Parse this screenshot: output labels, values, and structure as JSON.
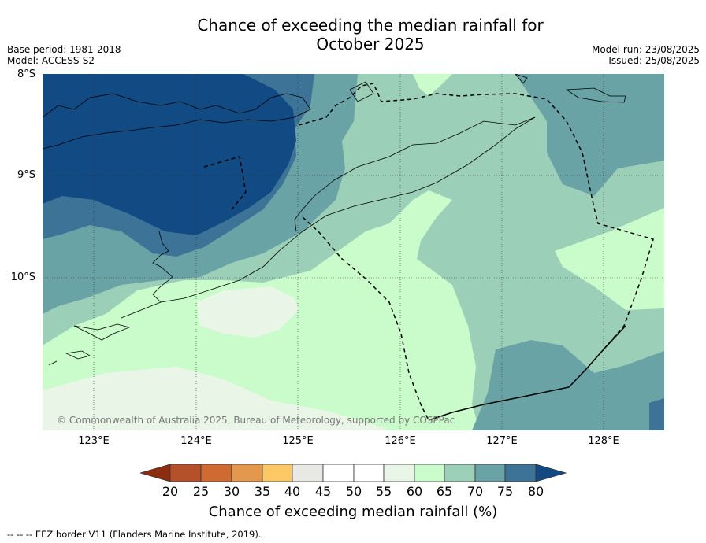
{
  "title": {
    "line1": "Chance of exceeding the median rainfall for",
    "line2": "October 2025"
  },
  "meta": {
    "base_period": "Base period: 1981-2018",
    "model": "Model: ACCESS-S2",
    "model_run": "Model run: 23/08/2025",
    "issued": "Issued: 25/08/2025"
  },
  "axes": {
    "lat_labels": [
      "8°S",
      "9°S",
      "10°S"
    ],
    "lon_labels": [
      "123°E",
      "124°E",
      "125°E",
      "126°E",
      "127°E",
      "128°E"
    ]
  },
  "copyright": "© Commonwealth of Australia 2025, Bureau of Meteorology, supported by COSPPac",
  "colorbar": {
    "label": "Chance of exceeding median rainfall (%)",
    "ticks": [
      "20",
      "25",
      "30",
      "35",
      "40",
      "45",
      "50",
      "55",
      "60",
      "65",
      "70",
      "75",
      "80"
    ],
    "colors": {
      "below_20": "#8c2d10",
      "20-25": "#b5502a",
      "25-30": "#d06a33",
      "30-35": "#e4984e",
      "35-40": "#fcc865",
      "40-45": "#e8e8e4",
      "45-50": "#ffffff",
      "50-55": "#ffffff",
      "55-60": "#e9f5e6",
      "60-65": "#c9fcca",
      "65-70": "#9ccfb8",
      "70-75": "#6aa3a6",
      "75-80": "#3c7397",
      "above_80": "#124a84"
    }
  },
  "footer": "-- -- -- EEZ border V11 (Flanders Marine Institute, 2019)."
}
